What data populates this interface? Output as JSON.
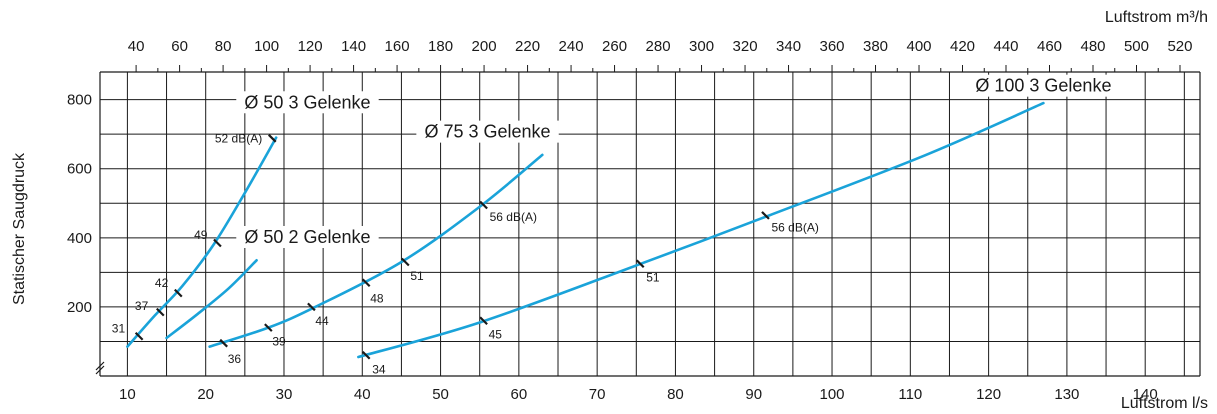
{
  "chart_data": {
    "type": "line",
    "xlabel_bottom": "Luftstrom l/s",
    "xlabel_top": "Luftstrom m³/h",
    "ylabel": "Statischer Saugdruck",
    "xlim": [
      6.5,
      147
    ],
    "ylim": [
      0,
      880
    ],
    "grid": true,
    "x_ticks": [
      10,
      20,
      30,
      40,
      50,
      60,
      70,
      80,
      90,
      100,
      110,
      120,
      130,
      140
    ],
    "y_ticks": [
      200,
      400,
      600,
      800
    ],
    "top_ticks": [
      40,
      60,
      80,
      100,
      120,
      140,
      160,
      180,
      200,
      220,
      240,
      260,
      280,
      300,
      320,
      340,
      360,
      380,
      400,
      420,
      440,
      460,
      480,
      500,
      520
    ],
    "series": [
      {
        "name": "Ø 50 3 Gelenke",
        "points": [
          [
            10,
            85
          ],
          [
            13.5,
            175
          ],
          [
            17,
            260
          ],
          [
            21,
            380
          ],
          [
            25,
            530
          ],
          [
            29,
            690
          ]
        ],
        "markers": [
          {
            "x": 11.5,
            "y": 115,
            "label": "31"
          },
          {
            "x": 14.2,
            "y": 185,
            "label": "37"
          },
          {
            "x": 16.5,
            "y": 240,
            "label": "42"
          },
          {
            "x": 21.5,
            "y": 385,
            "label": "49"
          },
          {
            "x": 28.5,
            "y": 688,
            "label": "52 dB(A)"
          }
        ]
      },
      {
        "name": "Ø 50 2 Gelenke",
        "points": [
          [
            15,
            110
          ],
          [
            19,
            180
          ],
          [
            23,
            255
          ],
          [
            26.5,
            335
          ]
        ],
        "markers": []
      },
      {
        "name": "Ø 75 3 Gelenke",
        "points": [
          [
            20.5,
            85
          ],
          [
            28,
            140
          ],
          [
            34,
            200
          ],
          [
            45,
            330
          ],
          [
            55,
            490
          ],
          [
            63,
            640
          ]
        ],
        "markers": [
          {
            "x": 22.3,
            "y": 95,
            "label": "36"
          },
          {
            "x": 28,
            "y": 140,
            "label": "39"
          },
          {
            "x": 33.5,
            "y": 200,
            "label": "44"
          },
          {
            "x": 40.5,
            "y": 270,
            "label": "48"
          },
          {
            "x": 45.5,
            "y": 330,
            "label": "51"
          },
          {
            "x": 55.5,
            "y": 495,
            "label": "56 dB(A)"
          }
        ]
      },
      {
        "name": "Ø 100 3 Gelenke",
        "points": [
          [
            39.5,
            55
          ],
          [
            55,
            155
          ],
          [
            75,
            320
          ],
          [
            92,
            465
          ],
          [
            112,
            640
          ],
          [
            127,
            790
          ]
        ],
        "markers": [
          {
            "x": 40.5,
            "y": 60,
            "label": "34"
          },
          {
            "x": 55.5,
            "y": 160,
            "label": "45"
          },
          {
            "x": 75.5,
            "y": 325,
            "label": "51"
          },
          {
            "x": 91.5,
            "y": 465,
            "label": "56 dB(A)"
          }
        ]
      }
    ]
  }
}
